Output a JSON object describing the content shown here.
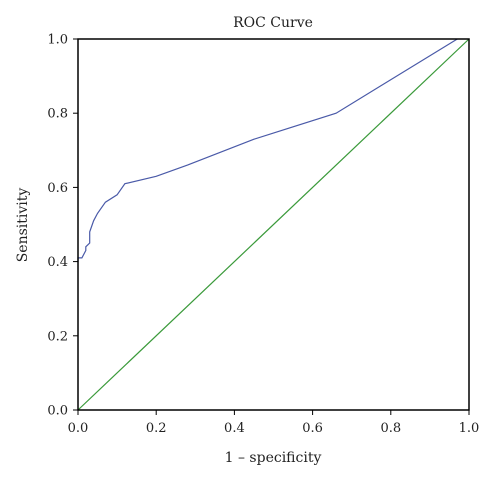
{
  "chart_data": {
    "type": "line",
    "title": "ROC Curve",
    "xlabel": "1 – specificity",
    "ylabel": "Sensitivity",
    "xlim": [
      0,
      1
    ],
    "ylim": [
      0,
      1
    ],
    "x_ticks": [
      "0.0",
      "0.2",
      "0.4",
      "0.6",
      "0.8",
      "1.0"
    ],
    "y_ticks": [
      "0.0",
      "0.2",
      "0.4",
      "0.6",
      "0.8",
      "1.0"
    ],
    "grid": false,
    "legend": "none",
    "series": [
      {
        "color": "#4a5aa8",
        "x": [
          0.0,
          0.0,
          0.01,
          0.02,
          0.02,
          0.03,
          0.03,
          0.04,
          0.05,
          0.07,
          0.1,
          0.12,
          0.2,
          0.28,
          0.45,
          0.66,
          0.97
        ],
        "y": [
          0.4,
          0.41,
          0.41,
          0.43,
          0.44,
          0.45,
          0.48,
          0.51,
          0.53,
          0.56,
          0.58,
          0.61,
          0.63,
          0.66,
          0.73,
          0.8,
          1.0
        ]
      },
      {
        "color": "#3a9a3a",
        "x": [
          0.0,
          1.0
        ],
        "y": [
          0.0,
          1.0
        ]
      }
    ]
  }
}
